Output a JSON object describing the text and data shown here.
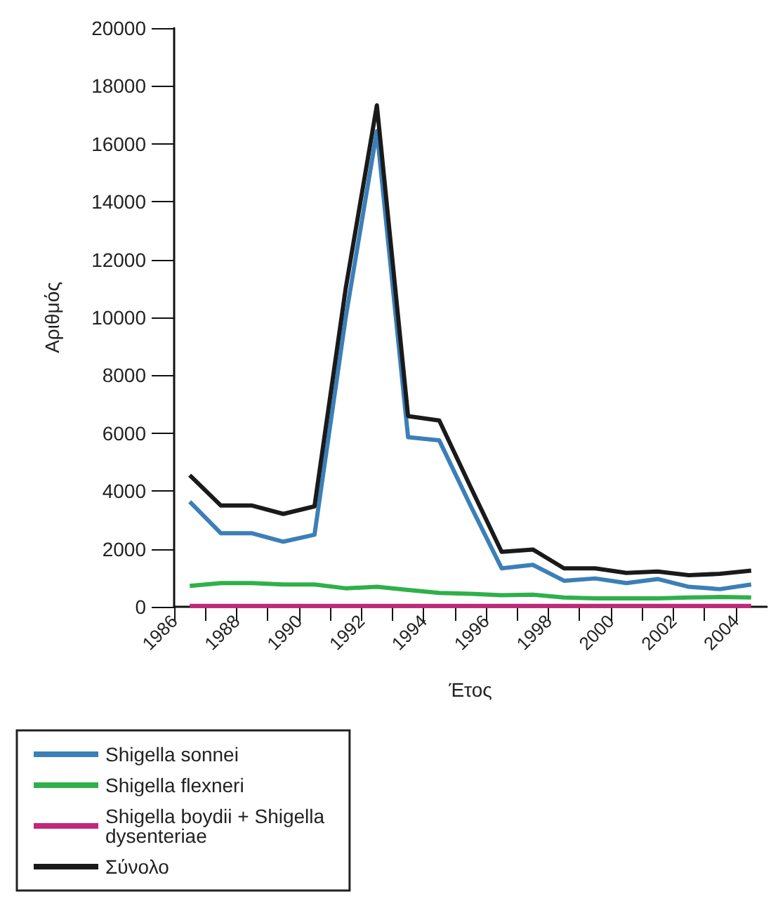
{
  "chart_data": {
    "type": "line",
    "xlabel": "Έτος",
    "ylabel": "Αριθμός",
    "x": [
      1986.5,
      1987.5,
      1988.5,
      1989.5,
      1990.5,
      1991.5,
      1992.5,
      1993.5,
      1994.5,
      1995.5,
      1996.5,
      1997.5,
      1998.5,
      1999.5,
      2000.5,
      2001.5,
      2002.5,
      2003.5,
      2004.5
    ],
    "series": [
      {
        "name": "Shigella sonnei",
        "color": "#3b7fb8",
        "values": [
          3630,
          2540,
          2540,
          2250,
          2490,
          10000,
          16440,
          5860,
          5750,
          3500,
          1330,
          1450,
          900,
          980,
          820,
          960,
          690,
          610,
          770
        ]
      },
      {
        "name": "Shigella flexneri",
        "color": "#2fb04a",
        "values": [
          720,
          820,
          820,
          770,
          770,
          640,
          690,
          580,
          480,
          450,
          400,
          420,
          320,
          290,
          290,
          290,
          320,
          340,
          320
        ]
      },
      {
        "name": "Shigella boydii + Shigella dysenteriae",
        "color": "#c0287a",
        "values": [
          30,
          30,
          30,
          30,
          30,
          30,
          30,
          30,
          30,
          30,
          30,
          30,
          30,
          30,
          30,
          30,
          30,
          30,
          30
        ]
      },
      {
        "name": "Σύνολο",
        "color": "#1a1a1a",
        "values": [
          4550,
          3500,
          3500,
          3210,
          3470,
          11000,
          17330,
          6590,
          6440,
          4150,
          1900,
          1980,
          1330,
          1330,
          1170,
          1220,
          1090,
          1140,
          1250
        ]
      }
    ],
    "xlim": [
      1986,
      2005
    ],
    "xticks": [
      1986,
      {
        "value": 1987,
        "label": null
      },
      1988,
      {
        "value": 1989,
        "label": null
      },
      1990,
      {
        "value": 1991,
        "label": null
      },
      1992,
      {
        "value": 1993,
        "label": null
      },
      1994,
      {
        "value": 1995,
        "label": null
      },
      1996,
      {
        "value": 1997,
        "label": null
      },
      1998,
      {
        "value": 1999,
        "label": null
      },
      2000,
      {
        "value": 2001,
        "label": null
      },
      2002,
      {
        "value": 2003,
        "label": null
      },
      2004
    ],
    "ylim": [
      0,
      20000
    ],
    "yticks": [
      0,
      2000,
      4000,
      6000,
      8000,
      10000,
      12000,
      14000,
      16000,
      18000,
      20000
    ],
    "grid": false,
    "legend": "bottom left",
    "marker": "none",
    "line_style": "solid"
  }
}
